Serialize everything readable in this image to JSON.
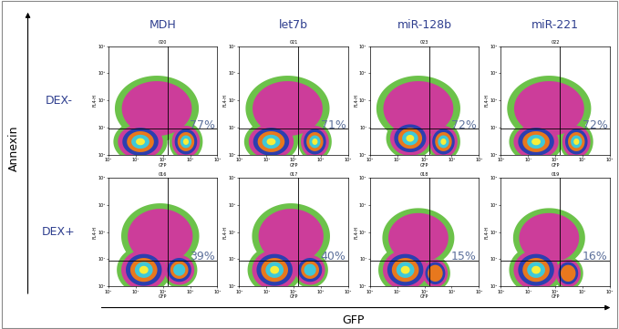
{
  "x_label": "GFP",
  "y_label": "Annexin",
  "column_labels": [
    "MDH",
    "let7b",
    "miR-128b",
    "miR-221"
  ],
  "row_labels": [
    "DEX-",
    "DEX+"
  ],
  "chart_data": [
    {
      "type": "density",
      "title": "020",
      "x_label": "GFP",
      "y_label": "FL4-H",
      "log": true,
      "xlim": [
        1,
        10000
      ],
      "ylim": [
        1,
        10000
      ],
      "xticks": [
        {
          "value": 1,
          "label": "10⁰"
        },
        {
          "value": 10,
          "label": "10¹"
        },
        {
          "value": 100,
          "label": "10²"
        },
        {
          "value": 1000,
          "label": "10³"
        },
        {
          "value": 10000,
          "label": "10⁴"
        }
      ],
      "yticks": [
        {
          "value": 1,
          "label": "10⁰"
        },
        {
          "value": 10,
          "label": "10¹"
        },
        {
          "value": 100,
          "label": "10²"
        },
        {
          "value": 1000,
          "label": "10³"
        },
        {
          "value": 10000,
          "label": "10⁴"
        }
      ],
      "quadrant": {
        "x": 150,
        "y": 9
      },
      "annotation": "77%",
      "colors": [
        "#6cc24a",
        "#cc3d9a",
        "#2c3fb0",
        "#e8781d",
        "#3fc8d8",
        "#f7ee3a"
      ],
      "populations": [
        {
          "x": 60,
          "y": 50,
          "spread_x": 0.7,
          "spread_y": 0.55,
          "levels": 2
        },
        {
          "x": 15,
          "y": 3,
          "spread_x": 0.45,
          "spread_y": 0.35,
          "levels": 6
        },
        {
          "x": 700,
          "y": 3,
          "spread_x": 0.28,
          "spread_y": 0.32,
          "levels": 6
        }
      ]
    },
    {
      "type": "density",
      "title": "021",
      "x_label": "GFP",
      "y_label": "FL4-H",
      "log": true,
      "xlim": [
        1,
        10000
      ],
      "ylim": [
        1,
        10000
      ],
      "xticks": [
        {
          "value": 1,
          "label": "10⁰"
        },
        {
          "value": 10,
          "label": "10¹"
        },
        {
          "value": 100,
          "label": "10²"
        },
        {
          "value": 1000,
          "label": "10³"
        },
        {
          "value": 10000,
          "label": "10⁴"
        }
      ],
      "yticks": [
        {
          "value": 1,
          "label": "10⁰"
        },
        {
          "value": 10,
          "label": "10¹"
        },
        {
          "value": 100,
          "label": "10²"
        },
        {
          "value": 1000,
          "label": "10³"
        },
        {
          "value": 10000,
          "label": "10⁴"
        }
      ],
      "quadrant": {
        "x": 150,
        "y": 9
      },
      "annotation": "71%",
      "colors": [
        "#6cc24a",
        "#cc3d9a",
        "#2c3fb0",
        "#e8781d",
        "#3fc8d8",
        "#f7ee3a"
      ],
      "populations": [
        {
          "x": 60,
          "y": 50,
          "spread_x": 0.7,
          "spread_y": 0.55,
          "levels": 2
        },
        {
          "x": 15,
          "y": 3,
          "spread_x": 0.45,
          "spread_y": 0.35,
          "levels": 6
        },
        {
          "x": 600,
          "y": 3,
          "spread_x": 0.28,
          "spread_y": 0.32,
          "levels": 6
        }
      ]
    },
    {
      "type": "density",
      "title": "023",
      "x_label": "GFP",
      "y_label": "FL4-H",
      "log": true,
      "xlim": [
        1,
        10000
      ],
      "ylim": [
        1,
        10000
      ],
      "xticks": [
        {
          "value": 1,
          "label": "10⁰"
        },
        {
          "value": 10,
          "label": "10¹"
        },
        {
          "value": 100,
          "label": "10²"
        },
        {
          "value": 1000,
          "label": "10³"
        },
        {
          "value": 10000,
          "label": "10⁴"
        }
      ],
      "yticks": [
        {
          "value": 1,
          "label": "10⁰"
        },
        {
          "value": 10,
          "label": "10¹"
        },
        {
          "value": 100,
          "label": "10²"
        },
        {
          "value": 1000,
          "label": "10³"
        },
        {
          "value": 10000,
          "label": "10⁴"
        }
      ],
      "quadrant": {
        "x": 150,
        "y": 9
      },
      "annotation": "72%",
      "colors": [
        "#6cc24a",
        "#cc3d9a",
        "#2c3fb0",
        "#e8781d",
        "#3fc8d8",
        "#f7ee3a"
      ],
      "populations": [
        {
          "x": 60,
          "y": 50,
          "spread_x": 0.7,
          "spread_y": 0.55,
          "levels": 2
        },
        {
          "x": 30,
          "y": 4,
          "spread_x": 0.4,
          "spread_y": 0.35,
          "levels": 6
        },
        {
          "x": 500,
          "y": 3,
          "spread_x": 0.28,
          "spread_y": 0.32,
          "levels": 6
        }
      ]
    },
    {
      "type": "density",
      "title": "022",
      "x_label": "GFP",
      "y_label": "FL4-H",
      "log": true,
      "xlim": [
        1,
        10000
      ],
      "ylim": [
        1,
        10000
      ],
      "xticks": [
        {
          "value": 1,
          "label": "10⁰"
        },
        {
          "value": 10,
          "label": "10¹"
        },
        {
          "value": 100,
          "label": "10²"
        },
        {
          "value": 1000,
          "label": "10³"
        },
        {
          "value": 10000,
          "label": "10⁴"
        }
      ],
      "yticks": [
        {
          "value": 1,
          "label": "10⁰"
        },
        {
          "value": 10,
          "label": "10¹"
        },
        {
          "value": 100,
          "label": "10²"
        },
        {
          "value": 1000,
          "label": "10³"
        },
        {
          "value": 10000,
          "label": "10⁴"
        }
      ],
      "quadrant": {
        "x": 150,
        "y": 9
      },
      "annotation": "72%",
      "colors": [
        "#6cc24a",
        "#cc3d9a",
        "#2c3fb0",
        "#e8781d",
        "#3fc8d8",
        "#f7ee3a"
      ],
      "populations": [
        {
          "x": 60,
          "y": 50,
          "spread_x": 0.7,
          "spread_y": 0.55,
          "levels": 2
        },
        {
          "x": 20,
          "y": 3,
          "spread_x": 0.45,
          "spread_y": 0.35,
          "levels": 6
        },
        {
          "x": 600,
          "y": 3,
          "spread_x": 0.28,
          "spread_y": 0.32,
          "levels": 6
        }
      ]
    },
    {
      "type": "density",
      "title": "016",
      "x_label": "GFP",
      "y_label": "FL4-H",
      "log": true,
      "xlim": [
        1,
        10000
      ],
      "ylim": [
        1,
        10000
      ],
      "xticks": [
        {
          "value": 1,
          "label": "10⁰"
        },
        {
          "value": 10,
          "label": "10¹"
        },
        {
          "value": 100,
          "label": "10²"
        },
        {
          "value": 1000,
          "label": "10³"
        },
        {
          "value": 10000,
          "label": "10⁴"
        }
      ],
      "yticks": [
        {
          "value": 1,
          "label": "10⁰"
        },
        {
          "value": 10,
          "label": "10¹"
        },
        {
          "value": 100,
          "label": "10²"
        },
        {
          "value": 1000,
          "label": "10³"
        },
        {
          "value": 10000,
          "label": "10⁴"
        }
      ],
      "quadrant": {
        "x": 150,
        "y": 9
      },
      "annotation": "39%",
      "colors": [
        "#6cc24a",
        "#cc3d9a",
        "#2c3fb0",
        "#e8781d",
        "#3fc8d8",
        "#f7ee3a"
      ],
      "populations": [
        {
          "x": 80,
          "y": 70,
          "spread_x": 0.65,
          "spread_y": 0.55,
          "levels": 2
        },
        {
          "x": 20,
          "y": 4,
          "spread_x": 0.45,
          "spread_y": 0.4,
          "levels": 6
        },
        {
          "x": 400,
          "y": 4,
          "spread_x": 0.3,
          "spread_y": 0.3,
          "levels": 5
        }
      ]
    },
    {
      "type": "density",
      "title": "017",
      "x_label": "GFP",
      "y_label": "FL4-H",
      "log": true,
      "xlim": [
        1,
        10000
      ],
      "ylim": [
        1,
        10000
      ],
      "xticks": [
        {
          "value": 1,
          "label": "10⁰"
        },
        {
          "value": 10,
          "label": "10¹"
        },
        {
          "value": 100,
          "label": "10²"
        },
        {
          "value": 1000,
          "label": "10³"
        },
        {
          "value": 10000,
          "label": "10⁴"
        }
      ],
      "yticks": [
        {
          "value": 1,
          "label": "10⁰"
        },
        {
          "value": 10,
          "label": "10¹"
        },
        {
          "value": 100,
          "label": "10²"
        },
        {
          "value": 1000,
          "label": "10³"
        },
        {
          "value": 10000,
          "label": "10⁴"
        }
      ],
      "quadrant": {
        "x": 150,
        "y": 9
      },
      "annotation": "40%",
      "colors": [
        "#6cc24a",
        "#cc3d9a",
        "#2c3fb0",
        "#e8781d",
        "#3fc8d8",
        "#f7ee3a"
      ],
      "populations": [
        {
          "x": 80,
          "y": 70,
          "spread_x": 0.65,
          "spread_y": 0.55,
          "levels": 2
        },
        {
          "x": 20,
          "y": 4,
          "spread_x": 0.45,
          "spread_y": 0.4,
          "levels": 6
        },
        {
          "x": 400,
          "y": 4,
          "spread_x": 0.3,
          "spread_y": 0.3,
          "levels": 5
        }
      ]
    },
    {
      "type": "density",
      "title": "018",
      "x_label": "GFP",
      "y_label": "FL4-H",
      "log": true,
      "xlim": [
        1,
        10000
      ],
      "ylim": [
        1,
        10000
      ],
      "xticks": [
        {
          "value": 1,
          "label": "10⁰"
        },
        {
          "value": 10,
          "label": "10¹"
        },
        {
          "value": 100,
          "label": "10²"
        },
        {
          "value": 1000,
          "label": "10³"
        },
        {
          "value": 10000,
          "label": "10⁴"
        }
      ],
      "yticks": [
        {
          "value": 1,
          "label": "10⁰"
        },
        {
          "value": 10,
          "label": "10¹"
        },
        {
          "value": 100,
          "label": "10²"
        },
        {
          "value": 1000,
          "label": "10³"
        },
        {
          "value": 10000,
          "label": "10⁴"
        }
      ],
      "quadrant": {
        "x": 150,
        "y": 9
      },
      "annotation": "15%",
      "colors": [
        "#6cc24a",
        "#cc3d9a",
        "#2c3fb0",
        "#e8781d",
        "#3fc8d8",
        "#f7ee3a"
      ],
      "populations": [
        {
          "x": 60,
          "y": 60,
          "spread_x": 0.6,
          "spread_y": 0.5,
          "levels": 2
        },
        {
          "x": 20,
          "y": 4,
          "spread_x": 0.45,
          "spread_y": 0.4,
          "levels": 6
        },
        {
          "x": 250,
          "y": 3,
          "spread_x": 0.25,
          "spread_y": 0.28,
          "levels": 4
        }
      ]
    },
    {
      "type": "density",
      "title": "019",
      "x_label": "GFP",
      "y_label": "FL4-H",
      "log": true,
      "xlim": [
        1,
        10000
      ],
      "ylim": [
        1,
        10000
      ],
      "xticks": [
        {
          "value": 1,
          "label": "10⁰"
        },
        {
          "value": 10,
          "label": "10¹"
        },
        {
          "value": 100,
          "label": "10²"
        },
        {
          "value": 1000,
          "label": "10³"
        },
        {
          "value": 10000,
          "label": "10⁴"
        }
      ],
      "yticks": [
        {
          "value": 1,
          "label": "10⁰"
        },
        {
          "value": 10,
          "label": "10¹"
        },
        {
          "value": 100,
          "label": "10²"
        },
        {
          "value": 1000,
          "label": "10³"
        },
        {
          "value": 10000,
          "label": "10⁴"
        }
      ],
      "quadrant": {
        "x": 150,
        "y": 9
      },
      "annotation": "16%",
      "colors": [
        "#6cc24a",
        "#cc3d9a",
        "#2c3fb0",
        "#e8781d",
        "#3fc8d8",
        "#f7ee3a"
      ],
      "populations": [
        {
          "x": 60,
          "y": 60,
          "spread_x": 0.6,
          "spread_y": 0.5,
          "levels": 2
        },
        {
          "x": 20,
          "y": 4,
          "spread_x": 0.45,
          "spread_y": 0.4,
          "levels": 6
        },
        {
          "x": 300,
          "y": 3,
          "spread_x": 0.25,
          "spread_y": 0.28,
          "levels": 4
        }
      ]
    }
  ]
}
